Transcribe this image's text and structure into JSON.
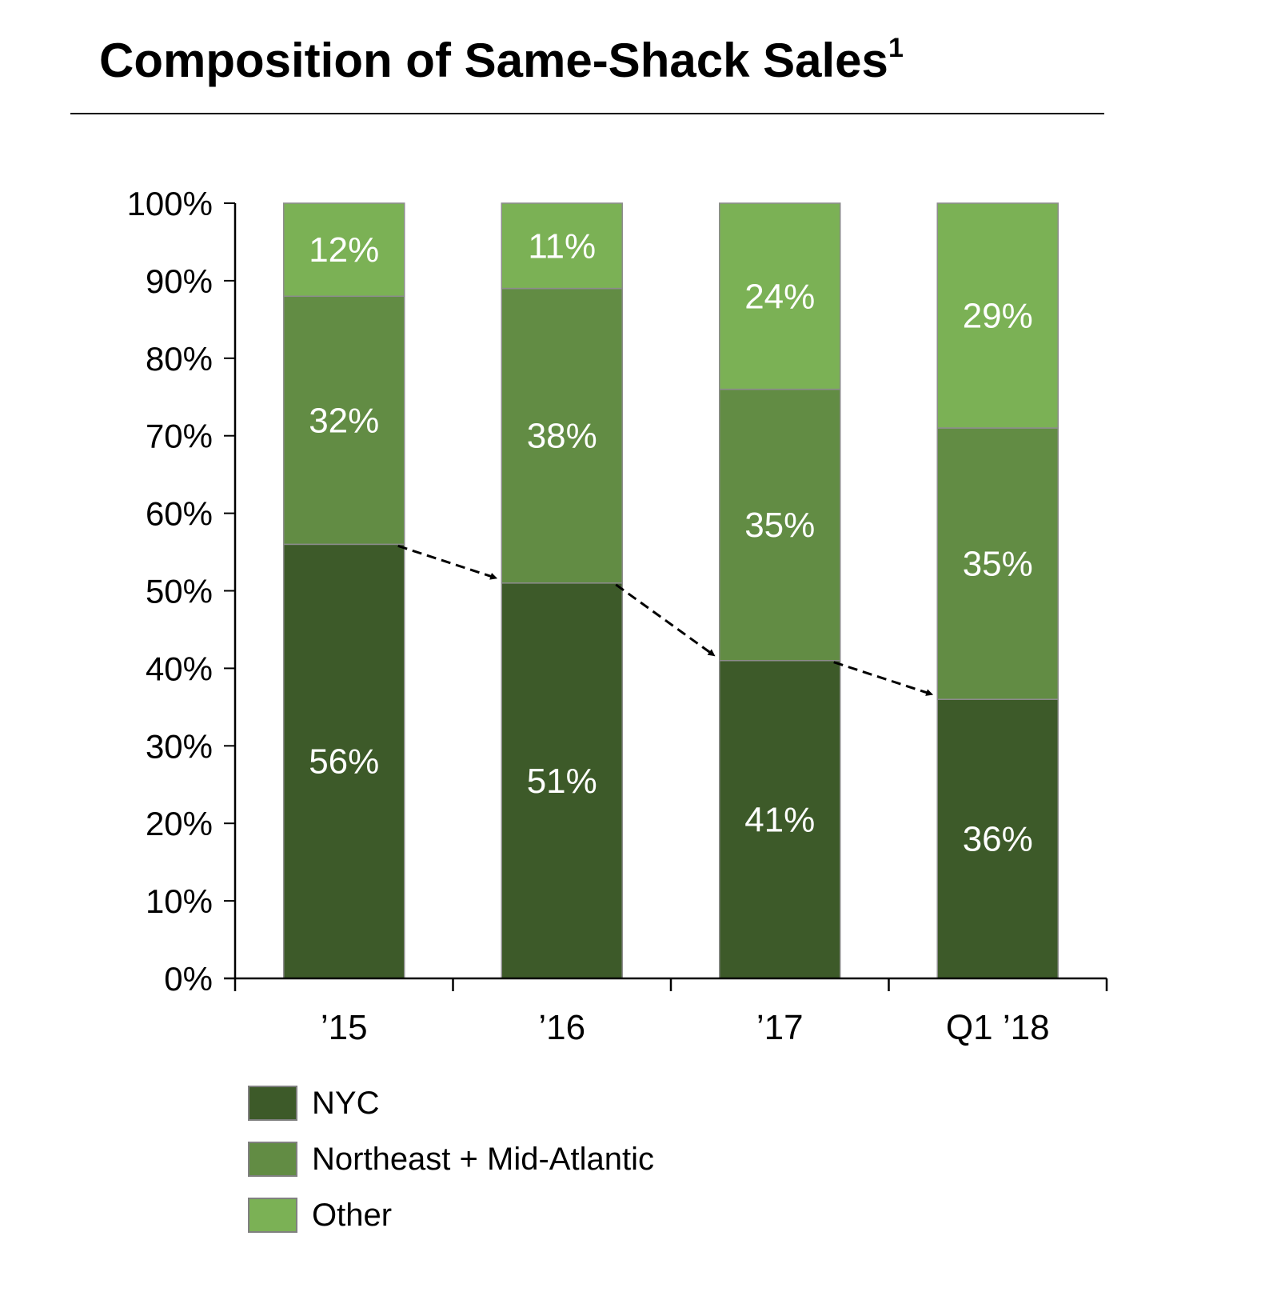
{
  "chart_data": {
    "type": "bar",
    "stacked": true,
    "title": "Composition of Same-Shack Sales",
    "title_superscript": "1",
    "categories": [
      "’15",
      "’16",
      "’17",
      "Q1 ’18"
    ],
    "series": [
      {
        "name": "NYC",
        "values": [
          56,
          51,
          41,
          36
        ],
        "labels": [
          "56%",
          "51%",
          "41%",
          "36%"
        ],
        "color": "#3d5a29"
      },
      {
        "name": "Northeast + Mid-Atlantic",
        "values": [
          32,
          38,
          35,
          35
        ],
        "labels": [
          "32%",
          "38%",
          "35%",
          "35%"
        ],
        "color": "#628c44"
      },
      {
        "name": "Other",
        "values": [
          12,
          11,
          24,
          29
        ],
        "labels": [
          "12%",
          "11%",
          "24%",
          "29%"
        ],
        "color": "#7bb155"
      }
    ],
    "ylim": [
      0,
      100
    ],
    "yticks": [
      "0%",
      "10%",
      "20%",
      "30%",
      "40%",
      "50%",
      "60%",
      "70%",
      "80%",
      "90%",
      "100%"
    ],
    "grid": false,
    "legend_position": "bottom-left",
    "annotations": "dashed arrows connecting the top of each NYC segment to the next bar"
  }
}
